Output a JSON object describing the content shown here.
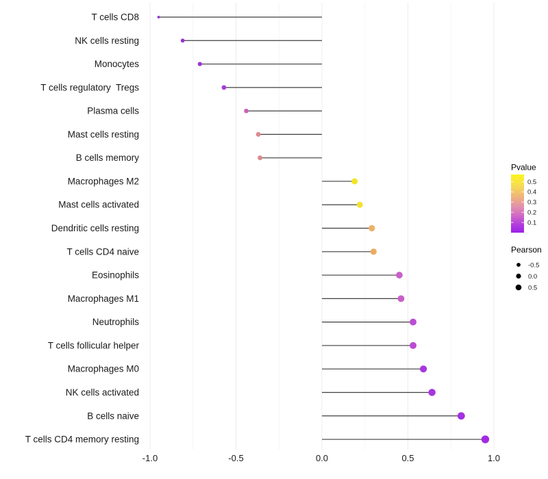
{
  "chart_data": {
    "type": "lollipop",
    "orientation": "horizontal",
    "title": "",
    "xlabel": "",
    "ylabel": "",
    "xlim": [
      -1.05,
      1.05
    ],
    "baseline_x": 0,
    "grid": "vertical-only",
    "x_major_ticks": {
      "values": [
        -1.0,
        -0.5,
        0.0,
        0.5,
        1.0
      ],
      "labels": [
        "-1.0",
        "-0.5",
        "0.0",
        "0.5",
        "1.0"
      ]
    },
    "x_minor_ticks": [
      -0.75,
      -0.25,
      0.25,
      0.75
    ],
    "stem_color": "#3F3F3F",
    "grid_major_color": "#ECECEC",
    "grid_minor_color": "#F5F5F5",
    "points": [
      {
        "label": "T cells CD8",
        "pearson": -0.95,
        "pvalue_approx": 0.02,
        "color": "#8A2FD9",
        "radius": 1.9
      },
      {
        "label": "NK cells resting",
        "pearson": -0.81,
        "pvalue_approx": 0.06,
        "color": "#9933D3",
        "radius": 2.9
      },
      {
        "label": "Monocytes",
        "pearson": -0.71,
        "pvalue_approx": 0.07,
        "color": "#9E34D4",
        "radius": 3.1
      },
      {
        "label": "T cells regulatory  Tregs",
        "pearson": -0.57,
        "pvalue_approx": 0.09,
        "color": "#A93CDA",
        "radius": 3.4
      },
      {
        "label": "Plasma cells",
        "pearson": -0.44,
        "pvalue_approx": 0.19,
        "color": "#C763B9",
        "radius": 3.3
      },
      {
        "label": "Mast cells resting",
        "pearson": -0.37,
        "pvalue_approx": 0.28,
        "color": "#DC8B90",
        "radius": 3.5
      },
      {
        "label": "B cells memory",
        "pearson": -0.36,
        "pvalue_approx": 0.28,
        "color": "#DC8A8C",
        "radius": 3.5
      },
      {
        "label": "Macrophages M2",
        "pearson": 0.19,
        "pvalue_approx": 0.52,
        "color": "#F3E524",
        "radius": 4.4
      },
      {
        "label": "Mast cells activated",
        "pearson": 0.22,
        "pvalue_approx": 0.5,
        "color": "#F1E335",
        "radius": 4.5
      },
      {
        "label": "Dendritic cells resting",
        "pearson": 0.29,
        "pvalue_approx": 0.38,
        "color": "#ECB168",
        "radius": 4.6
      },
      {
        "label": "T cells CD4 naive",
        "pearson": 0.3,
        "pvalue_approx": 0.36,
        "color": "#EAAC63",
        "radius": 4.6
      },
      {
        "label": "Eosinophils",
        "pearson": 0.45,
        "pvalue_approx": 0.18,
        "color": "#C960C8",
        "radius": 4.9
      },
      {
        "label": "Macrophages M1",
        "pearson": 0.46,
        "pvalue_approx": 0.18,
        "color": "#C960C8",
        "radius": 4.9
      },
      {
        "label": "Neutrophils",
        "pearson": 0.53,
        "pvalue_approx": 0.13,
        "color": "#BB4CD3",
        "radius": 5.0
      },
      {
        "label": "T cells follicular helper",
        "pearson": 0.53,
        "pvalue_approx": 0.13,
        "color": "#BB4CD3",
        "radius": 5.0
      },
      {
        "label": "Macrophages M0",
        "pearson": 0.59,
        "pvalue_approx": 0.08,
        "color": "#A637DF",
        "radius": 5.1
      },
      {
        "label": "NK cells activated",
        "pearson": 0.64,
        "pvalue_approx": 0.08,
        "color": "#A535E0",
        "radius": 5.2
      },
      {
        "label": "B cells naive",
        "pearson": 0.81,
        "pvalue_approx": 0.06,
        "color": "#A330E1",
        "radius": 5.4
      },
      {
        "label": "T cells CD4 memory resting",
        "pearson": 0.95,
        "pvalue_approx": 0.05,
        "color": "#A32BE2",
        "radius": 5.7
      }
    ],
    "legend": {
      "pvalue": {
        "title": "Pvalue",
        "tick_labels": [
          "0.5",
          "0.4",
          "0.3",
          "0.2",
          "0.1"
        ],
        "tick_values": [
          0.5,
          0.4,
          0.3,
          0.2,
          0.1
        ],
        "bar_value_range": [
          0.571,
          0.0
        ],
        "gradient_stops": [
          {
            "offset": 0.0,
            "color": "#FBF51D"
          },
          {
            "offset": 0.2,
            "color": "#F6DB55"
          },
          {
            "offset": 0.4,
            "color": "#EFB07F"
          },
          {
            "offset": 0.55,
            "color": "#E292AC"
          },
          {
            "offset": 0.7,
            "color": "#D26AC5"
          },
          {
            "offset": 0.85,
            "color": "#B440DB"
          },
          {
            "offset": 1.0,
            "color": "#9B20E8"
          }
        ]
      },
      "pearson": {
        "title": "Pearson",
        "items": [
          {
            "label": "-0.5",
            "value": -0.5,
            "radius": 2.9
          },
          {
            "label": "0.0",
            "value": 0.0,
            "radius": 3.6
          },
          {
            "label": "0.5",
            "value": 0.5,
            "radius": 4.3
          }
        ],
        "dot_color": "#000000"
      }
    }
  }
}
